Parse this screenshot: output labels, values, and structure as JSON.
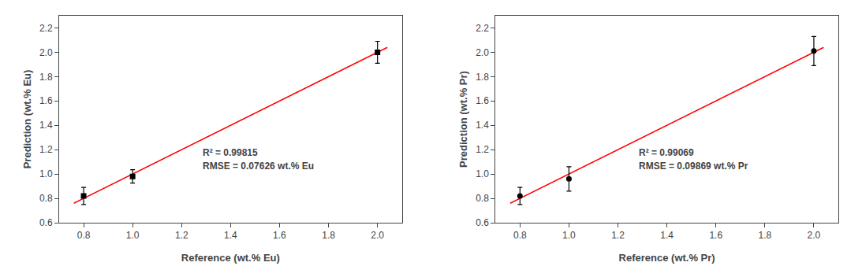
{
  "chart_data": [
    {
      "type": "scatter",
      "x_label": "Reference (wt.% Eu)",
      "y_label": "Prediction (wt.% Eu)",
      "series": [
        {
          "type": "line",
          "color": "#FF0000",
          "x": [
            0.76,
            2.04
          ],
          "values": [
            0.76,
            2.04
          ]
        },
        {
          "type": "scatter",
          "color": "black",
          "marker": "square",
          "x": [
            0.8,
            1.0,
            2.0
          ],
          "values": [
            0.82,
            0.98,
            2.0
          ],
          "errors": [
            0.07,
            0.055,
            0.09
          ]
        }
      ],
      "annotations": [
        {
          "text": "R² = 0.99815",
          "x": 1.28,
          "y": 1.12
        },
        {
          "text": "RMSE = 0.07626 wt.% Eu",
          "x": 1.28,
          "y": 1.01
        }
      ],
      "xlim": [
        0.7,
        2.1
      ],
      "ylim": [
        0.6,
        2.3
      ],
      "xticks": [
        0.8,
        {
          "value": 1.0,
          "label": "1.0"
        },
        1.2,
        1.4,
        1.6,
        1.8,
        {
          "value": 2.0,
          "label": "2.0"
        }
      ],
      "yticks": [
        0.6,
        0.8,
        {
          "value": 1.0,
          "label": "1.0"
        },
        1.2,
        1.4,
        1.6,
        1.8,
        {
          "value": 2.0,
          "label": "2.0"
        },
        2.2
      ],
      "grid": false
    },
    {
      "type": "scatter",
      "x_label": "Reference (wt.% Pr)",
      "y_label": "Prediction (wt.% Pr)",
      "series": [
        {
          "type": "line",
          "color": "#FF0000",
          "x": [
            0.76,
            2.04
          ],
          "values": [
            0.76,
            2.04
          ]
        },
        {
          "type": "scatter",
          "color": "black",
          "marker": "circle",
          "x": [
            0.8,
            1.0,
            2.0
          ],
          "values": [
            0.82,
            0.96,
            2.01
          ],
          "errors": [
            0.07,
            0.1,
            0.12
          ]
        }
      ],
      "annotations": [
        {
          "text": "R² = 0.99069",
          "x": 1.28,
          "y": 1.12
        },
        {
          "text": "RMSE = 0.09869 wt.% Pr",
          "x": 1.28,
          "y": 1.01
        }
      ],
      "xlim": [
        0.7,
        2.1
      ],
      "ylim": [
        0.6,
        2.3
      ],
      "xticks": [
        0.8,
        {
          "value": 1.0,
          "label": "1.0"
        },
        1.2,
        1.4,
        1.6,
        1.8,
        {
          "value": 2.0,
          "label": "2.0"
        }
      ],
      "yticks": [
        0.6,
        0.8,
        {
          "value": 1.0,
          "label": "1.0"
        },
        1.2,
        1.4,
        1.6,
        1.8,
        {
          "value": 2.0,
          "label": "2.0"
        },
        2.2
      ],
      "grid": false
    }
  ]
}
